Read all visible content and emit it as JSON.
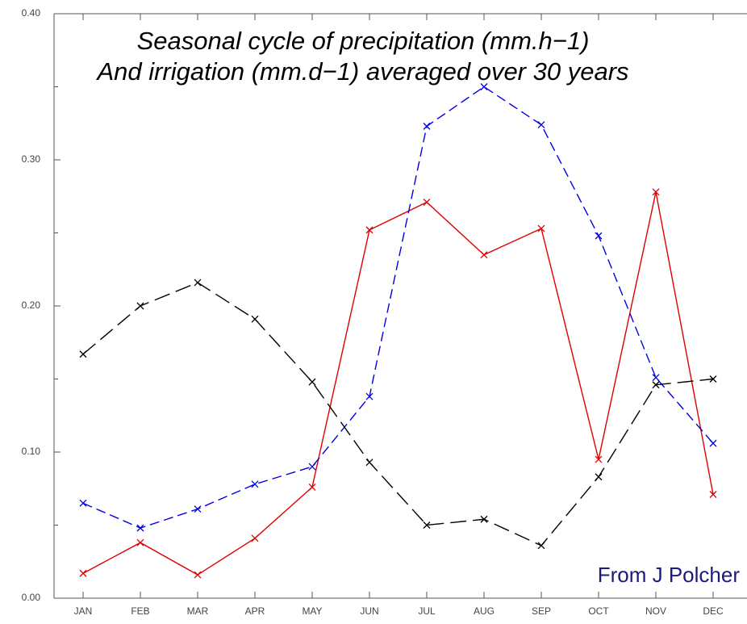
{
  "chart_data": {
    "type": "line",
    "title_lines": [
      "Seasonal cycle of precipitation (mm.h−1)",
      "And irrigation (mm.d−1) averaged over 30 years"
    ],
    "annotation": "From J Polcher",
    "categories": [
      "JAN",
      "FEB",
      "MAR",
      "APR",
      "MAY",
      "JUN",
      "JUL",
      "AUG",
      "SEP",
      "OCT",
      "NOV",
      "DEC"
    ],
    "series": [
      {
        "color": "#e00000",
        "dash": "solid",
        "values": [
          0.017,
          0.038,
          0.016,
          0.041,
          0.076,
          0.252,
          0.271,
          0.235,
          0.253,
          0.095,
          0.278,
          0.071
        ]
      },
      {
        "color": "#0000e0",
        "dash": "dashed",
        "values": [
          0.065,
          0.048,
          0.061,
          0.078,
          0.09,
          0.138,
          0.323,
          0.35,
          0.324,
          0.248,
          0.151,
          0.106
        ]
      },
      {
        "color": "#000000",
        "dash": "longdash",
        "values": [
          0.167,
          0.2,
          0.216,
          0.191,
          0.148,
          0.093,
          0.05,
          0.054,
          0.036,
          0.083,
          0.146,
          0.15
        ]
      }
    ],
    "ylim": [
      0,
      0.4
    ],
    "yticks": [
      {
        "value": 0,
        "label": "0.00"
      },
      {
        "value": 0.1,
        "label": "0.10"
      },
      {
        "value": 0.2,
        "label": "0.20"
      },
      {
        "value": 0.3,
        "label": "0.30"
      },
      {
        "value": 0.4,
        "label": "0.40"
      }
    ],
    "yminorticks": [
      0.05,
      0.15,
      0.25,
      0.35
    ],
    "grid": false
  }
}
